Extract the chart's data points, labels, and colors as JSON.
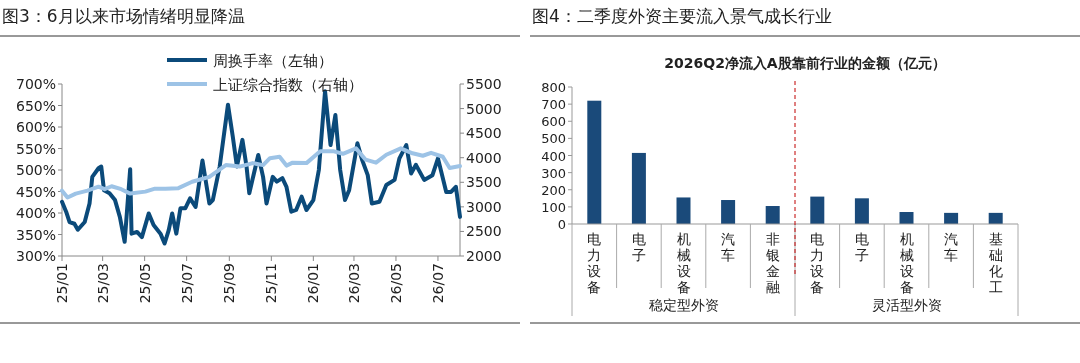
{
  "chart_data": [
    {
      "type": "line",
      "title": "图3：6月以来市场情绪明显降温",
      "legend": "top",
      "xlim": [
        "2025-01-01",
        "2026-08-02"
      ],
      "xticks": [
        {
          "value": "2025-01-01",
          "label": "25/01"
        },
        {
          "value": "2025-03-01",
          "label": "25/03"
        },
        {
          "value": "2025-05-01",
          "label": "25/05"
        },
        {
          "value": "2025-07-01",
          "label": "25/07"
        },
        {
          "value": "2025-09-01",
          "label": "25/09"
        },
        {
          "value": "2025-11-01",
          "label": "25/11"
        },
        {
          "value": "2026-01-01",
          "label": "26/01"
        },
        {
          "value": "2026-03-01",
          "label": "26/03"
        },
        {
          "value": "2026-05-01",
          "label": "26/05"
        },
        {
          "value": "2026-07-01",
          "label": "26/07"
        }
      ],
      "ylim": [
        300,
        700
      ],
      "yticks": [
        {
          "value": 300,
          "label": "300%"
        },
        {
          "value": 350,
          "label": "350%"
        },
        {
          "value": 400,
          "label": "400%"
        },
        {
          "value": 450,
          "label": "450%"
        },
        {
          "value": 500,
          "label": "500%"
        },
        {
          "value": 550,
          "label": "550%"
        },
        {
          "value": 600,
          "label": "600%"
        },
        {
          "value": 650,
          "label": "650%"
        },
        {
          "value": 700,
          "label": "700%"
        }
      ],
      "y2lim": [
        2000,
        5500
      ],
      "y2ticks": [
        2000,
        2500,
        3000,
        3500,
        4000,
        4500,
        5000,
        5500
      ],
      "series": [
        {
          "name": "周换手率（左轴）",
          "color": "#0b4a7a",
          "x": [
            "2025-01-01",
            "2025-01-07",
            "2025-01-12",
            "2025-01-19",
            "2025-01-24",
            "2025-02-03",
            "2025-02-10",
            "2025-02-14",
            "2025-02-23",
            "2025-02-27",
            "2025-03-03",
            "2025-03-11",
            "2025-03-19",
            "2025-03-26",
            "2025-04-02",
            "2025-04-10",
            "2025-04-12",
            "2025-04-20",
            "2025-04-27",
            "2025-05-07",
            "2025-05-14",
            "2025-05-24",
            "2025-05-30",
            "2025-06-05",
            "2025-06-10",
            "2025-06-16",
            "2025-06-22",
            "2025-06-29",
            "2025-07-06",
            "2025-07-14",
            "2025-07-24",
            "2025-08-03",
            "2025-08-08",
            "2025-08-18",
            "2025-08-30",
            "2025-09-06",
            "2025-09-12",
            "2025-09-20",
            "2025-09-26",
            "2025-09-30",
            "2025-10-13",
            "2025-10-20",
            "2025-10-25",
            "2025-11-03",
            "2025-11-09",
            "2025-11-17",
            "2025-11-23",
            "2025-11-30",
            "2025-12-07",
            "2025-12-15",
            "2025-12-22",
            "2026-01-01",
            "2026-01-09",
            "2026-01-18",
            "2026-01-26",
            "2026-02-02",
            "2026-02-09",
            "2026-02-16",
            "2026-02-22",
            "2026-03-06",
            "2026-03-13",
            "2026-03-21",
            "2026-03-27",
            "2026-04-07",
            "2026-04-17",
            "2026-04-29",
            "2026-05-06",
            "2026-05-16",
            "2026-05-23",
            "2026-05-30",
            "2026-06-11",
            "2026-06-23",
            "2026-07-01",
            "2026-07-13",
            "2026-07-20",
            "2026-07-27",
            "2026-08-02"
          ],
          "values": [
            426,
            403,
            379,
            375,
            361,
            379,
            422,
            484,
            504,
            508,
            453,
            446,
            430,
            391,
            333,
            502,
            352,
            356,
            344,
            399,
            372,
            352,
            329,
            360,
            399,
            352,
            411,
            411,
            434,
            414,
            522,
            422,
            430,
            508,
            652,
            578,
            508,
            570,
            508,
            446,
            535,
            484,
            422,
            484,
            473,
            481,
            461,
            403,
            407,
            438,
            407,
            430,
            500,
            683,
            558,
            628,
            500,
            430,
            453,
            562,
            523,
            488,
            422,
            426,
            465,
            477,
            527,
            558,
            492,
            512,
            477,
            488,
            527,
            449,
            449,
            461,
            391
          ]
        },
        {
          "name": "上证综合指数（右轴）",
          "color": "#9dc3e6",
          "axis": "y2",
          "x": [
            "2025-01-01",
            "2025-01-09",
            "2025-01-21",
            "2025-02-07",
            "2025-02-23",
            "2025-03-04",
            "2025-03-14",
            "2025-03-28",
            "2025-04-10",
            "2025-05-02",
            "2025-05-16",
            "2025-05-31",
            "2025-06-19",
            "2025-07-09",
            "2025-08-03",
            "2025-08-27",
            "2025-09-16",
            "2025-10-05",
            "2025-10-20",
            "2025-10-30",
            "2025-11-13",
            "2025-11-23",
            "2025-12-02",
            "2025-12-22",
            "2026-01-11",
            "2026-01-31",
            "2026-02-13",
            "2026-03-04",
            "2026-03-18",
            "2026-04-02",
            "2026-04-17",
            "2026-05-08",
            "2026-05-25",
            "2026-06-09",
            "2026-06-21",
            "2026-07-08",
            "2026-07-18",
            "2026-08-02"
          ],
          "values": [
            3330,
            3190,
            3270,
            3330,
            3410,
            3360,
            3420,
            3360,
            3270,
            3310,
            3370,
            3370,
            3380,
            3510,
            3610,
            3850,
            3820,
            3890,
            3850,
            3990,
            4020,
            3840,
            3900,
            3890,
            4130,
            4130,
            4080,
            4190,
            3960,
            3900,
            4060,
            4190,
            4090,
            4040,
            4100,
            4020,
            3790,
            3830
          ]
        }
      ]
    },
    {
      "type": "bar",
      "title": "图4：二季度外资主要流入景气成长行业",
      "subtitle": "2026Q2净流入A股靠前行业的金额（亿元）",
      "categories": [
        "电力设备",
        "电子",
        "机械设备",
        "汽车",
        "非银金融",
        "电力设备",
        "电子",
        "机械设备",
        "汽车",
        "基础化工"
      ],
      "values": [
        720,
        415,
        155,
        140,
        105,
        160,
        150,
        70,
        65,
        65
      ],
      "color": "#1a4a7a",
      "ylim": [
        0,
        800
      ],
      "yticks": [
        0,
        100,
        200,
        300,
        400,
        500,
        600,
        700,
        800
      ],
      "annotations": [
        "稳定型外资",
        "灵活型外资"
      ]
    }
  ]
}
